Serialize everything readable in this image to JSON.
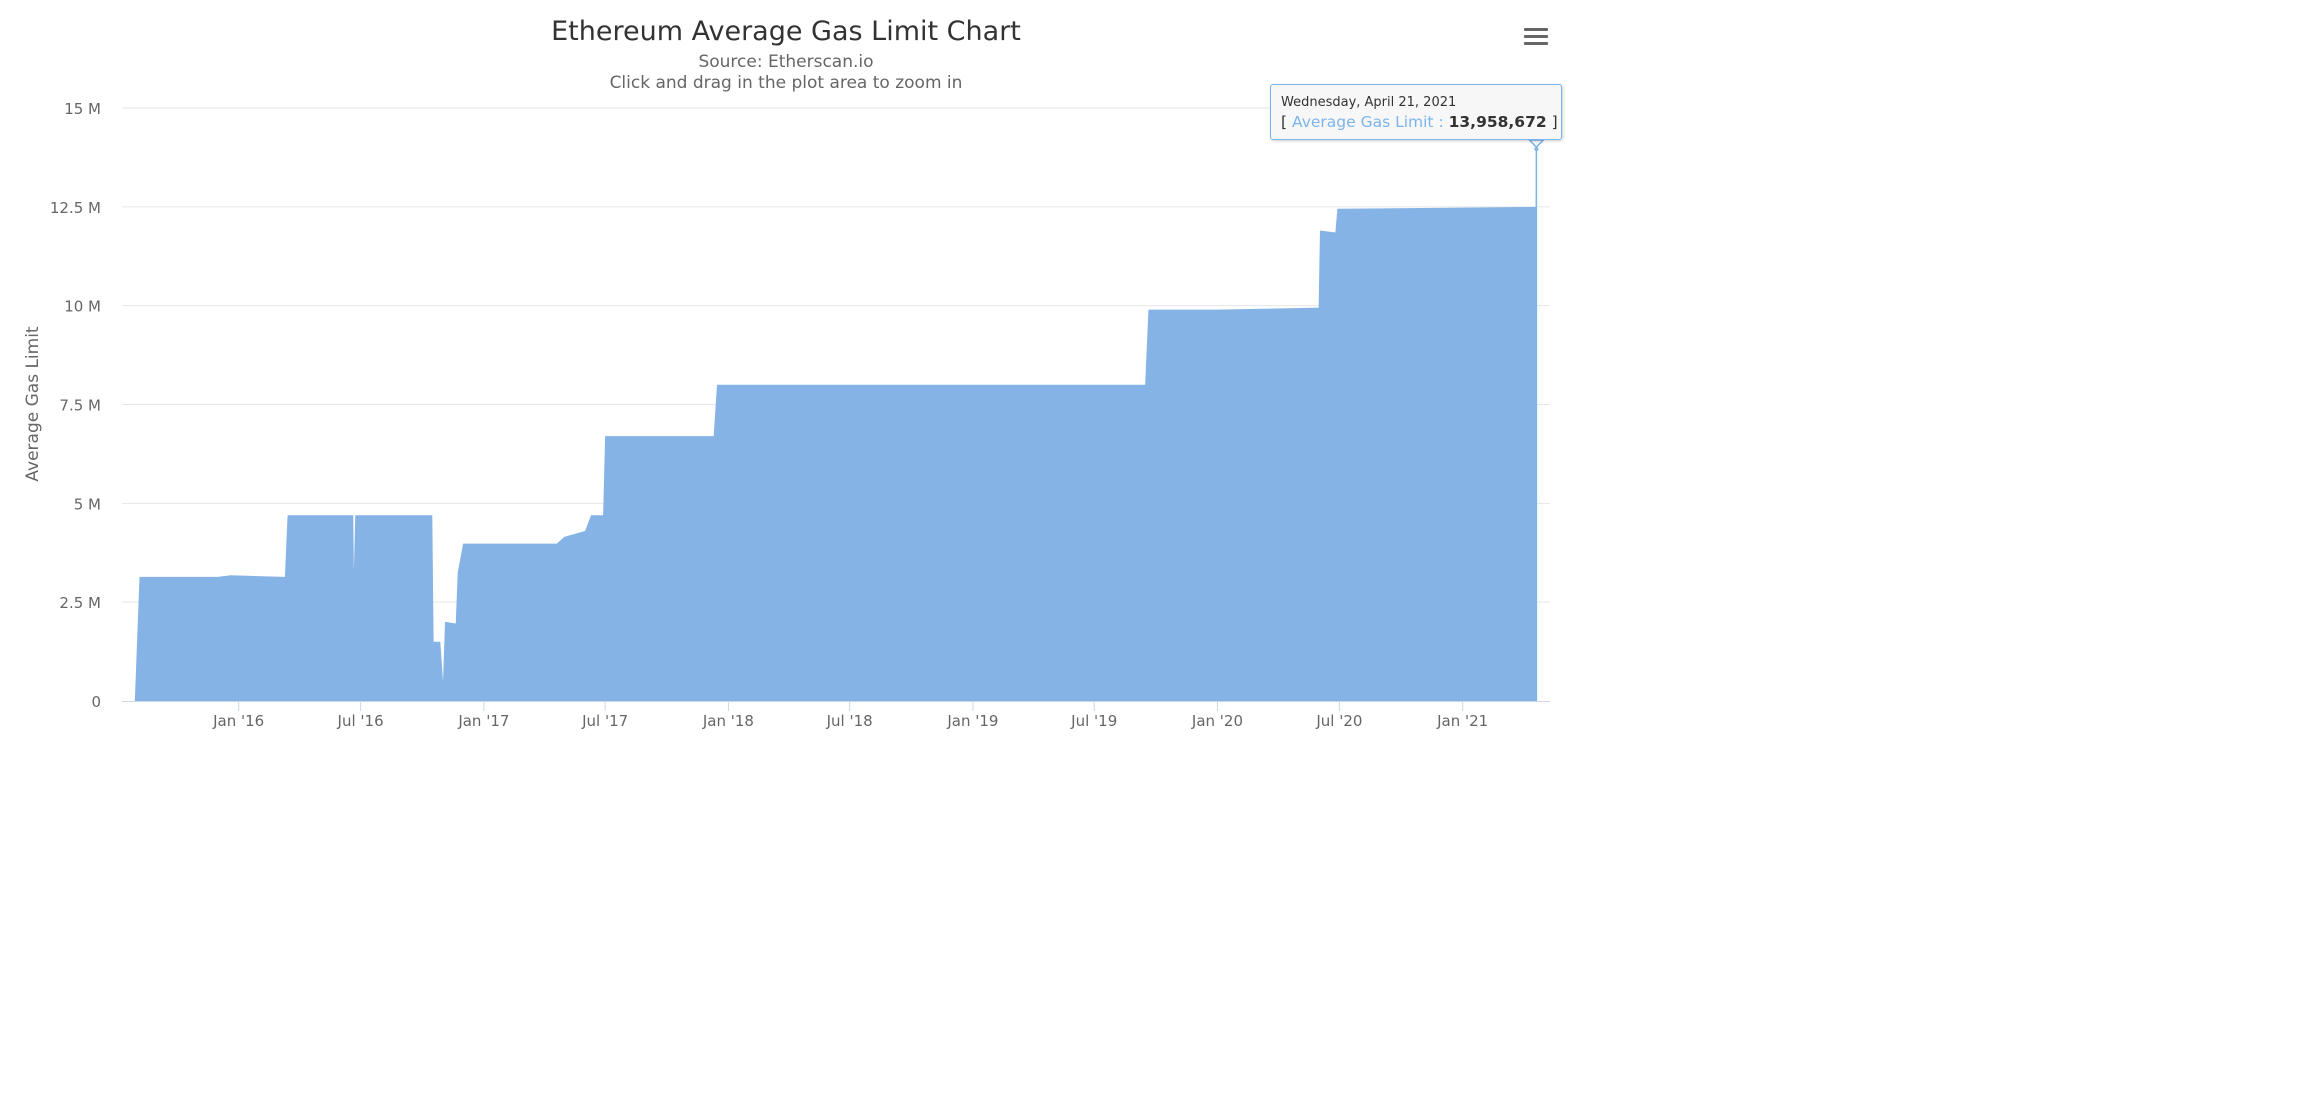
{
  "header": {
    "title": "Ethereum Average Gas Limit Chart",
    "subtitle_source": "Source: Etherscan.io",
    "subtitle_hint": "Click and drag in the plot area to zoom in"
  },
  "menu": {
    "icon": "hamburger-menu-icon"
  },
  "tooltip": {
    "date": "Wednesday, April 21, 2021",
    "bracket_open": "[",
    "series_label": "Average Gas Limit :",
    "value": "13,958,672",
    "bracket_close": "]"
  },
  "colors": {
    "series": "#7cb5ec",
    "series_fill": "#85b3e5",
    "grid": "#e6e6e6"
  },
  "chart_data": {
    "type": "area",
    "title": "Ethereum Average Gas Limit Chart",
    "subtitle": "Source: Etherscan.io",
    "xlabel": "",
    "ylabel": "Average Gas Limit",
    "xlim": [
      "2015-07-30",
      "2021-05-15"
    ],
    "ylim": [
      0,
      15000000
    ],
    "y_ticks": [
      0,
      2500000,
      5000000,
      7500000,
      10000000,
      12500000,
      15000000
    ],
    "y_tick_labels": [
      "0",
      "2.5 M",
      "5 M",
      "7.5 M",
      "10 M",
      "12.5 M",
      "15 M"
    ],
    "x_ticks": [
      "2016-01-01",
      "2016-07-01",
      "2017-01-01",
      "2017-07-01",
      "2018-01-01",
      "2018-07-01",
      "2019-01-01",
      "2019-07-01",
      "2020-01-01",
      "2020-07-01",
      "2021-01-01"
    ],
    "x_tick_labels": [
      "Jan '16",
      "Jul '16",
      "Jan '17",
      "Jul '17",
      "Jan '18",
      "Jul '18",
      "Jan '19",
      "Jul '19",
      "Jan '20",
      "Jul '20",
      "Jan '21"
    ],
    "grid": true,
    "legend": "none",
    "series": [
      {
        "name": "Average Gas Limit",
        "points": [
          [
            "2015-07-30",
            0
          ],
          [
            "2015-08-06",
            3140000
          ],
          [
            "2015-12-01",
            3140000
          ],
          [
            "2015-12-20",
            3180000
          ],
          [
            "2016-03-10",
            3140000
          ],
          [
            "2016-03-14",
            4700000
          ],
          [
            "2016-06-20",
            4700000
          ],
          [
            "2016-06-21",
            3300000
          ],
          [
            "2016-06-23",
            4700000
          ],
          [
            "2016-10-16",
            4700000
          ],
          [
            "2016-10-18",
            1500000
          ],
          [
            "2016-10-28",
            1500000
          ],
          [
            "2016-11-01",
            500000
          ],
          [
            "2016-11-04",
            2000000
          ],
          [
            "2016-11-20",
            1960000
          ],
          [
            "2016-11-23",
            3250000
          ],
          [
            "2016-12-01",
            3980000
          ],
          [
            "2017-04-20",
            3980000
          ],
          [
            "2017-05-01",
            4150000
          ],
          [
            "2017-06-01",
            4300000
          ],
          [
            "2017-06-10",
            4700000
          ],
          [
            "2017-06-28",
            4700000
          ],
          [
            "2017-07-01",
            6700000
          ],
          [
            "2017-12-10",
            6700000
          ],
          [
            "2017-12-15",
            8000000
          ],
          [
            "2019-09-15",
            8000000
          ],
          [
            "2019-09-20",
            9900000
          ],
          [
            "2019-12-31",
            9900000
          ],
          [
            "2020-05-31",
            9950000
          ],
          [
            "2020-06-02",
            11900000
          ],
          [
            "2020-06-25",
            11850000
          ],
          [
            "2020-06-28",
            12450000
          ],
          [
            "2021-04-20",
            12500000
          ],
          [
            "2021-04-21",
            13958672
          ]
        ]
      }
    ],
    "highlighted_point": {
      "x": "2021-04-21",
      "y": 13958672
    }
  }
}
